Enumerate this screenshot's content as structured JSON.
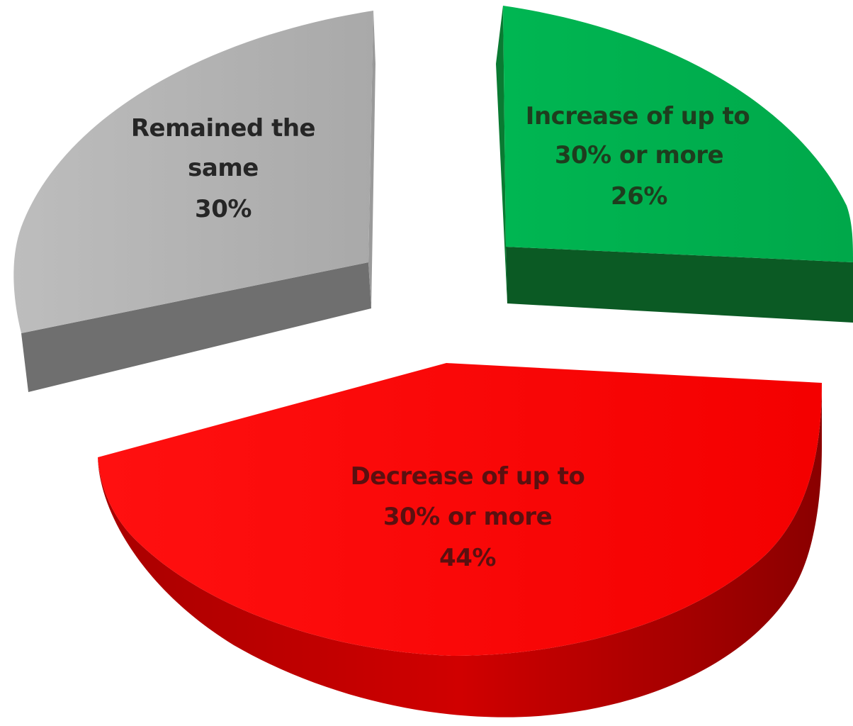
{
  "chart_data": {
    "type": "pie",
    "style": "3d-exploded",
    "slices": [
      {
        "name": "Remained the same",
        "value": 30,
        "label_lines": [
          "Remained the",
          "same",
          "30%"
        ],
        "color": "#b3b3b3",
        "side_color": "#6b6b6b",
        "label_color": "#262626"
      },
      {
        "name": "Increase of up to 30% or more",
        "value": 26,
        "label_lines": [
          "Increase of up to",
          "30% or more",
          "26%"
        ],
        "color": "#00b04f",
        "side_color": "#0b5a24",
        "label_color": "#1e3d1e"
      },
      {
        "name": "Decrease of up to 30% or more",
        "value": 44,
        "label_lines": [
          "Decrease of up to",
          "30% or more",
          "44%"
        ],
        "color": "#ff0000",
        "side_color": "#9a0000",
        "label_color": "#5a1010"
      }
    ]
  }
}
